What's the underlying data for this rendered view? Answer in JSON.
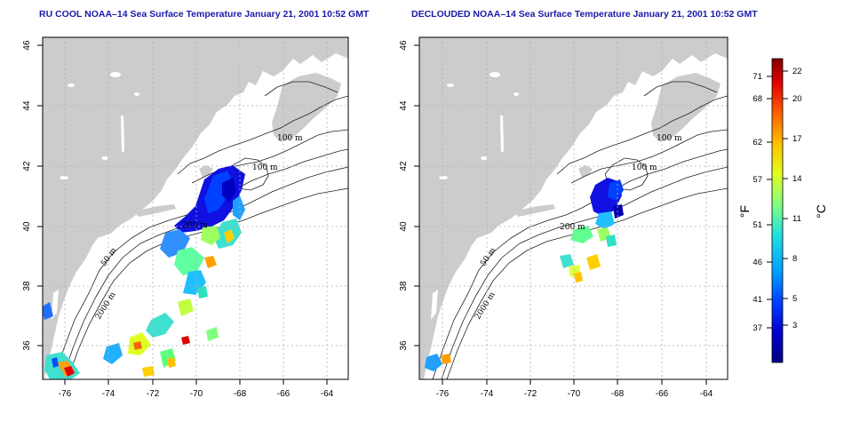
{
  "maps": [
    {
      "title": "RU COOL NOAA–14 Sea Surface Temperature January 21, 2001 10:52 GMT",
      "x_ticks": [
        "-76",
        "-74",
        "-72",
        "-70",
        "-68",
        "-66",
        "-64"
      ],
      "y_ticks": [
        "36",
        "38",
        "40",
        "42",
        "44",
        "46"
      ],
      "contour_labels": [
        "100 m",
        "100 m",
        "200 m",
        "50 m",
        "2000 m"
      ]
    },
    {
      "title": "DECLOUDED NOAA–14 Sea Surface Temperature January 21, 2001 10:52 GMT",
      "x_ticks": [
        "-76",
        "-74",
        "-72",
        "-70",
        "-68",
        "-66",
        "-64"
      ],
      "y_ticks": [
        "36",
        "38",
        "40",
        "42",
        "44",
        "46"
      ],
      "contour_labels": [
        "100 m",
        "100 m",
        "200 m",
        "50 m",
        "2000 m"
      ]
    }
  ],
  "colorbar": {
    "fahrenheit_ticks": [
      "71",
      "68",
      "62",
      "57",
      "51",
      "46",
      "41",
      "37"
    ],
    "celsius_ticks": [
      "22",
      "20",
      "17",
      "14",
      "11",
      "8",
      "5",
      "3"
    ],
    "fahrenheit_unit": "°F",
    "celsius_unit": "°C",
    "colors": [
      "#000080",
      "#0000d0",
      "#0040ff",
      "#00a0ff",
      "#20e0e0",
      "#80ff80",
      "#e0ff20",
      "#ffc000",
      "#ff6000",
      "#e00000",
      "#800000"
    ]
  },
  "colors": {
    "land": "#cccccc",
    "title": "#1a1aa8",
    "grid": "#b0b0b0"
  }
}
